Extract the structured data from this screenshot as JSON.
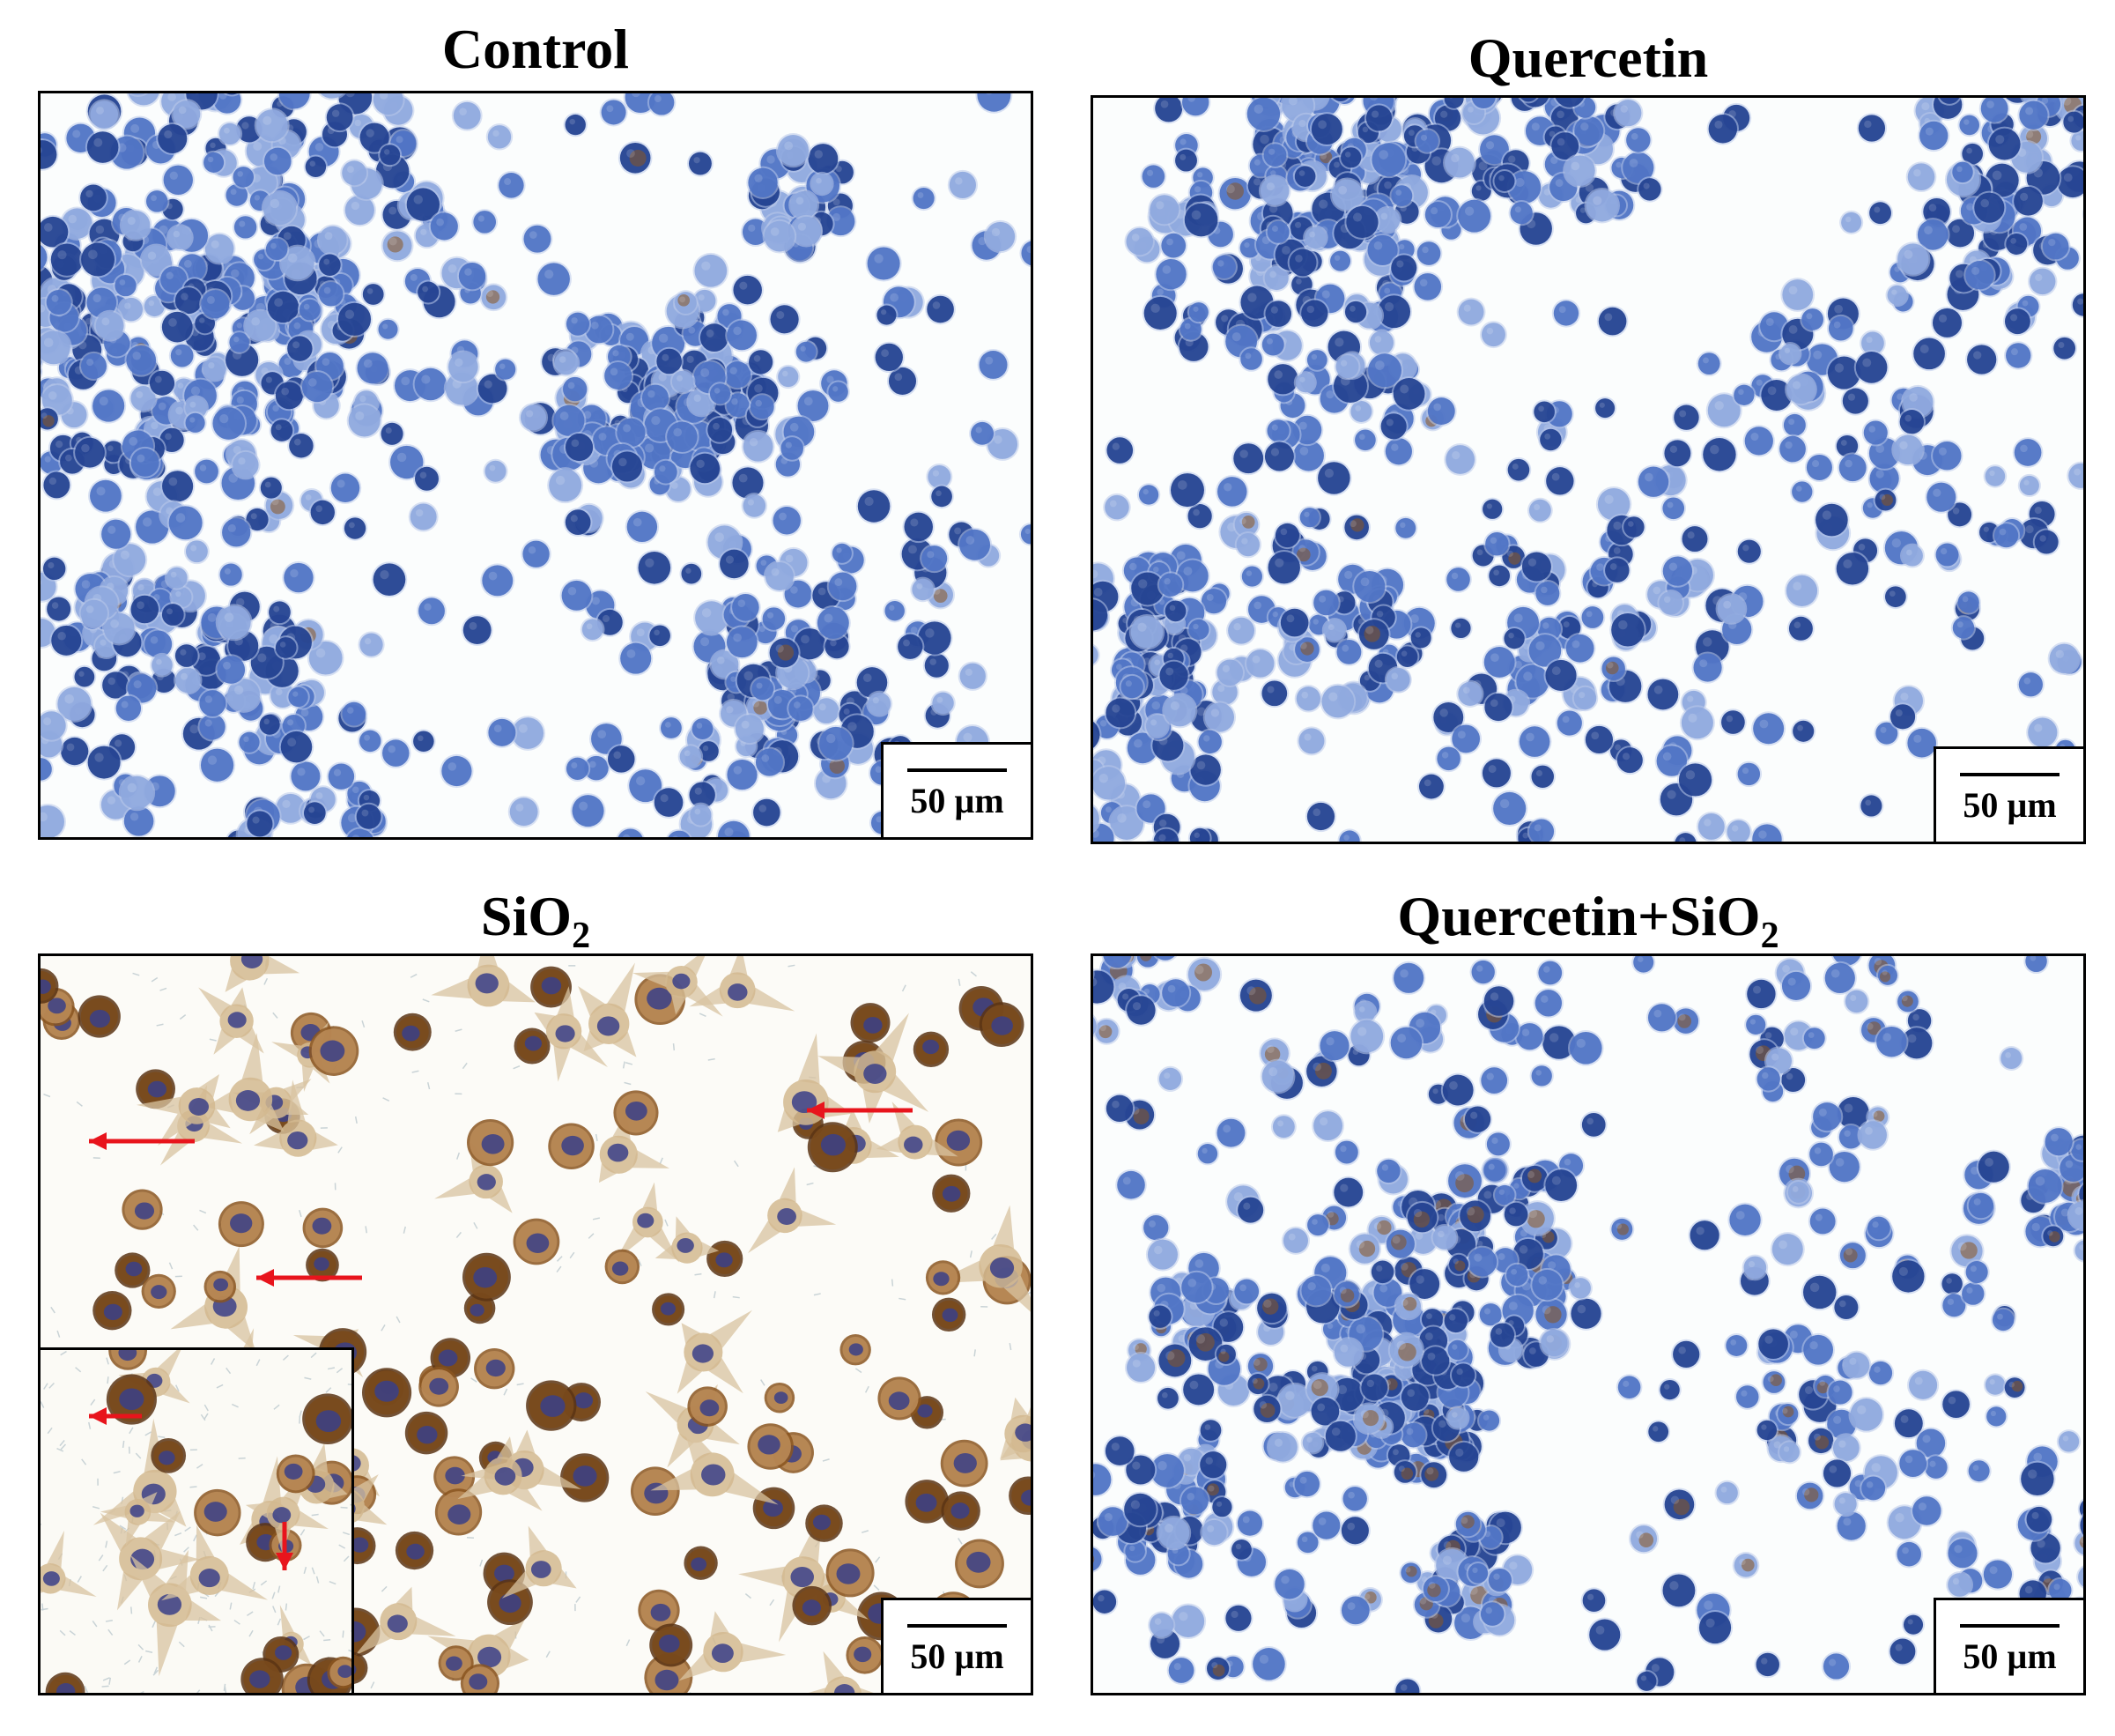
{
  "panels": [
    {
      "id": "control",
      "title": "Control",
      "title_sub": "",
      "scale_label": "50 µm",
      "stain": "blue"
    },
    {
      "id": "quercetin",
      "title": "Quercetin",
      "title_sub": "",
      "scale_label": "50 µm",
      "stain": "blue"
    },
    {
      "id": "sio2",
      "title": "SiO",
      "title_sub": "2",
      "scale_label": "50 µm",
      "stain": "brown"
    },
    {
      "id": "quercetin-sio2",
      "title": "Quercetin+SiO",
      "title_sub": "2",
      "scale_label": "50 µm",
      "stain": "mixed"
    }
  ],
  "colors": {
    "nucleus_blue": "#1f3f8f",
    "cell_blue": "#4d72c4",
    "cell_light_blue": "#8ea8de",
    "brown_stain": "#8a5520",
    "dark_brown": "#5a3414",
    "arrow_red": "#e8141c",
    "background": "#fbfdfd"
  },
  "icons": {
    "arrow": "red-arrow-icon"
  }
}
